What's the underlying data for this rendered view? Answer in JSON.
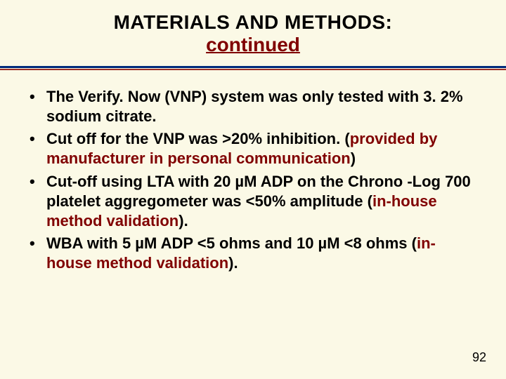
{
  "colors": {
    "slide_bg": "#fbf9e6",
    "title_color": "#000000",
    "title_sub_color": "#800000",
    "rule_top": "#002b7a",
    "rule_bot": "#9a2b20",
    "bullet_text": "#000000",
    "accent_text": "#800000",
    "page_num": "#000000"
  },
  "fontsize": {
    "title": 28,
    "body": 22,
    "page_num": 18
  },
  "title": {
    "line1": "MATERIALS AND METHODS:",
    "line2": "continued"
  },
  "bullets": [
    {
      "runs": [
        {
          "text": "The Verify. Now (VNP) system was only tested with 3. 2% sodium citrate.",
          "accent": false
        }
      ]
    },
    {
      "runs": [
        {
          "text": "Cut off for the VNP was >20% inhibition. (",
          "accent": false
        },
        {
          "text": "provided by manufacturer in personal communication",
          "accent": true
        },
        {
          "text": ")",
          "accent": false
        }
      ]
    },
    {
      "runs": [
        {
          "text": "Cut-off using LTA with 20 µM ADP on the Chrono -Log 700 platelet aggregometer was <50% amplitude (",
          "accent": false
        },
        {
          "text": "in-house method validation",
          "accent": true
        },
        {
          "text": ").",
          "accent": false
        }
      ]
    },
    {
      "runs": [
        {
          "text": "WBA with 5 µM ADP <5 ohms and 10 µM <8 ohms (",
          "accent": false
        },
        {
          "text": "in-house method validation",
          "accent": true
        },
        {
          "text": ").",
          "accent": false
        }
      ]
    }
  ],
  "page_number": "92"
}
